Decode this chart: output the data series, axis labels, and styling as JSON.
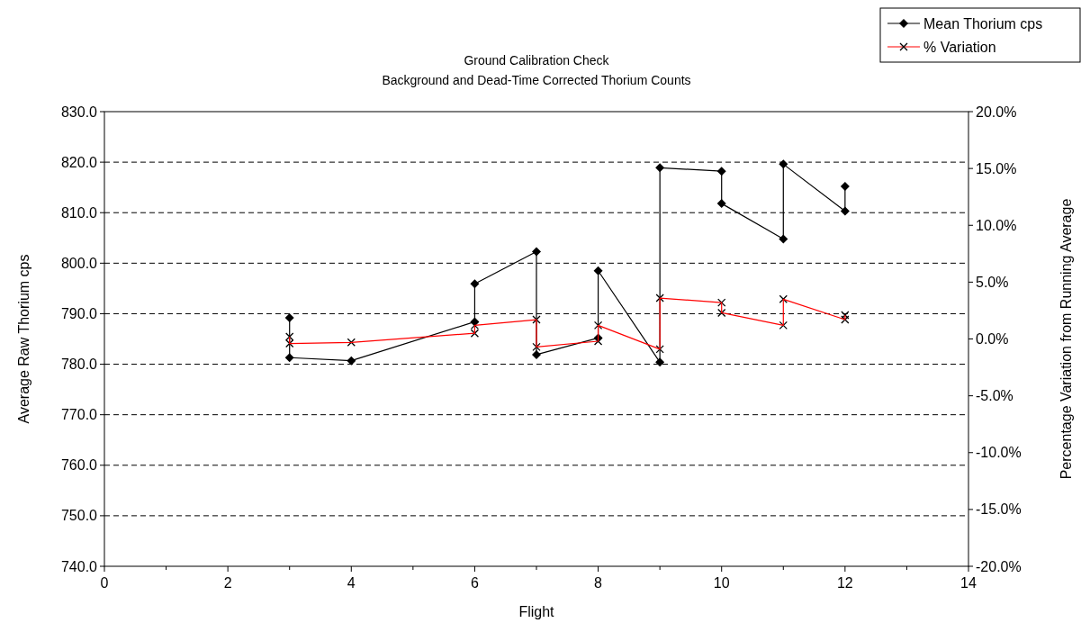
{
  "chart_data": {
    "type": "line",
    "title": "Ground Calibration Check",
    "subtitle": "Background and Dead-Time Corrected Thorium Counts",
    "xlabel": "Flight",
    "ylabel": "Average Raw Thorium cps",
    "y2label": "Percentage Variation from Running Average",
    "xlim": [
      0,
      14
    ],
    "xticks": [
      0,
      {
        "value": 1,
        "label": null
      },
      2,
      {
        "value": 3,
        "label": null
      },
      4,
      {
        "value": 5,
        "label": null
      },
      6,
      {
        "value": 7,
        "label": null
      },
      8,
      {
        "value": 9,
        "label": null
      },
      10,
      {
        "value": 11,
        "label": null
      },
      12,
      {
        "value": 13,
        "label": null
      },
      14
    ],
    "ylim": [
      740,
      830
    ],
    "yticks": [
      {
        "value": 740,
        "label": "740.0"
      },
      {
        "value": 750,
        "label": "750.0"
      },
      {
        "value": 760,
        "label": "760.0"
      },
      {
        "value": 770,
        "label": "770.0"
      },
      {
        "value": 780,
        "label": "780.0"
      },
      {
        "value": 790,
        "label": "790.0"
      },
      {
        "value": 800,
        "label": "800.0"
      },
      {
        "value": 810,
        "label": "810.0"
      },
      {
        "value": 820,
        "label": "820.0"
      },
      {
        "value": 830,
        "label": "830.0"
      }
    ],
    "y2lim": [
      -20,
      20
    ],
    "y2ticks": [
      {
        "value": -20,
        "label": "-20.0%"
      },
      {
        "value": -15,
        "label": "-15.0%"
      },
      {
        "value": -10,
        "label": "-10.0%"
      },
      {
        "value": -5,
        "label": "-5.0%"
      },
      {
        "value": 0,
        "label": "0.0%"
      },
      {
        "value": 5,
        "label": "5.0%"
      },
      {
        "value": 10,
        "label": "10.0%"
      },
      {
        "value": 15,
        "label": "15.0%"
      },
      {
        "value": 20,
        "label": "20.0%"
      }
    ],
    "grid": "y",
    "legend": "top right",
    "line_style": "solid",
    "series": [
      {
        "name": "Mean Thorium cps",
        "color": "#000000",
        "marker": "diamond",
        "x": [
          3,
          3,
          4,
          6,
          6,
          7,
          7,
          8,
          8,
          9,
          9,
          10,
          10,
          11,
          11,
          12,
          12
        ],
        "values": [
          789.2,
          781.3,
          780.7,
          788.4,
          795.9,
          802.3,
          781.9,
          785.2,
          798.5,
          780.4,
          818.9,
          818.2,
          811.8,
          804.8,
          819.6,
          810.3,
          815.2
        ]
      },
      {
        "name": "% Variation",
        "color": "#ff0000",
        "marker": "cross",
        "axis": "y2",
        "x": [
          3,
          3,
          4,
          6,
          6,
          7,
          7,
          8,
          8,
          9,
          9,
          10,
          10,
          11,
          11,
          12,
          12
        ],
        "values": [
          0.2,
          -0.4,
          -0.3,
          0.5,
          1.2,
          1.7,
          -0.7,
          -0.2,
          1.2,
          -0.9,
          3.6,
          3.2,
          2.3,
          1.2,
          3.5,
          1.7,
          2.1
        ]
      }
    ]
  }
}
